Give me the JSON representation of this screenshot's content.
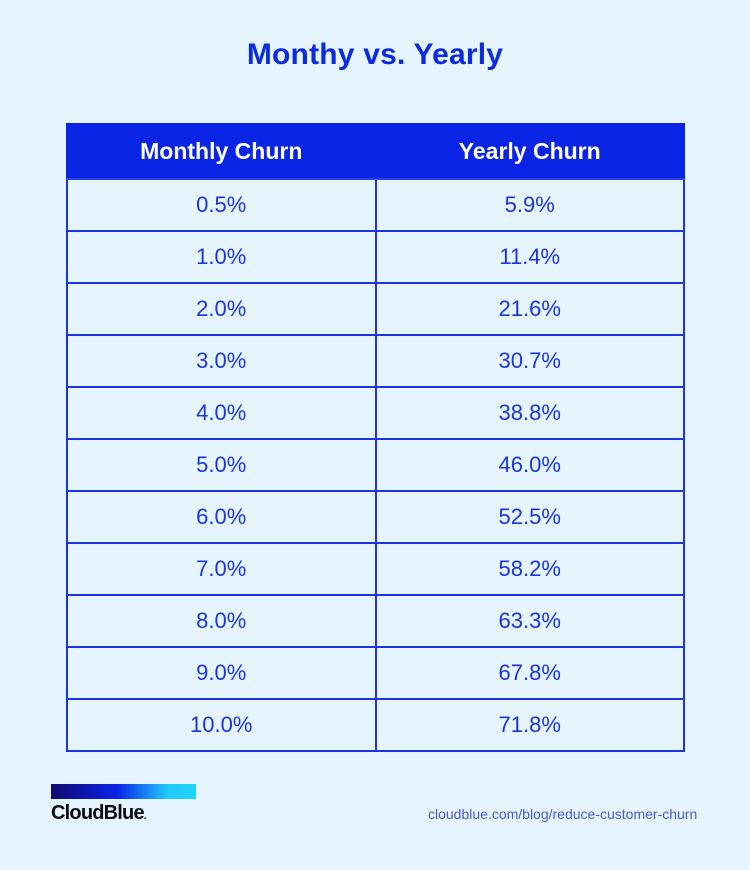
{
  "title": "Monthy vs. Yearly",
  "table": {
    "headers": [
      "Monthly Churn",
      "Yearly Churn"
    ],
    "rows": [
      [
        "0.5%",
        "5.9%"
      ],
      [
        "1.0%",
        "11.4%"
      ],
      [
        "2.0%",
        "21.6%"
      ],
      [
        "3.0%",
        "30.7%"
      ],
      [
        "4.0%",
        "38.8%"
      ],
      [
        "5.0%",
        "46.0%"
      ],
      [
        "6.0%",
        "52.5%"
      ],
      [
        "7.0%",
        "58.2%"
      ],
      [
        "8.0%",
        "63.3%"
      ],
      [
        "9.0%",
        "67.8%"
      ],
      [
        "10.0%",
        "71.8%"
      ]
    ]
  },
  "footer": {
    "brand": "CloudBlue",
    "brand_dot": ".",
    "url": "cloudblue.com/blog/reduce-customer-churn"
  },
  "colors": {
    "background": "#e6f4fe",
    "accent": "#0a24e6",
    "text": "#1a35e0"
  }
}
